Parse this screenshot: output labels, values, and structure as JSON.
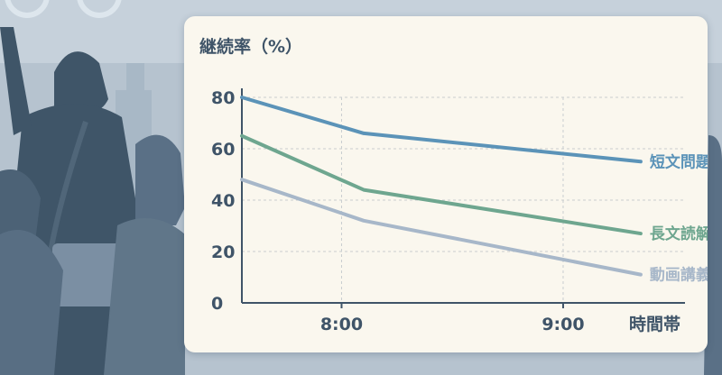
{
  "chart_data": {
    "type": "line",
    "title": "",
    "ylabel": "継続率（%）",
    "xlabel": "時間帯",
    "x_ticks": [
      "8:00",
      "9:00"
    ],
    "ylim": [
      0,
      80
    ],
    "y_ticks": [
      "0",
      "20",
      "40",
      "60",
      "80"
    ],
    "grid": true,
    "series": [
      {
        "name": "短文問題",
        "color": "#5b93b8",
        "x": [
          7.55,
          8.1,
          9.35
        ],
        "values": [
          80,
          66,
          55
        ]
      },
      {
        "name": "長文読解",
        "color": "#6ea68f",
        "x": [
          7.55,
          8.1,
          9.35
        ],
        "values": [
          65,
          44,
          27
        ]
      },
      {
        "name": "動画講義",
        "color": "#a7b7c9",
        "x": [
          7.55,
          8.1,
          9.35
        ],
        "values": [
          48,
          32,
          11
        ]
      }
    ]
  }
}
